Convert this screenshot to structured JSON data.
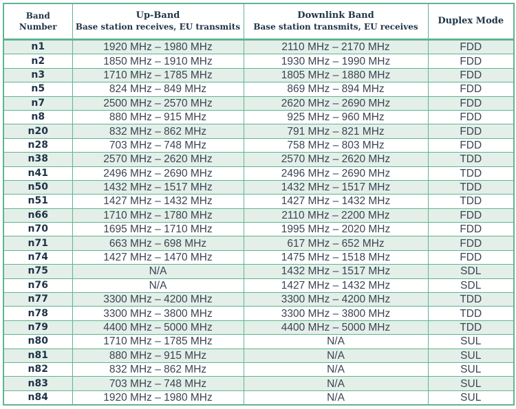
{
  "table": {
    "headers": {
      "band": {
        "line1": "Band",
        "line2": "Number"
      },
      "uplink": {
        "title": "Up-Band",
        "subtitle": "Base station receives, EU transmits"
      },
      "downlink": {
        "title": "Downlink Band",
        "subtitle": "Base station transmits, EU receives"
      },
      "duplex": {
        "title": "Duplex Mode"
      }
    },
    "colors": {
      "border": "#5fb391",
      "shaded_row": "#e3efe8",
      "header_text": "#1f3347"
    },
    "rows": [
      {
        "band": "n1",
        "uplink": "1920 MHz – 1980 MHz",
        "downlink": "2110 MHz – 2170 MHz",
        "duplex": "FDD"
      },
      {
        "band": "n2",
        "uplink": "1850 MHz – 1910 MHz",
        "downlink": "1930 MHz – 1990 MHz",
        "duplex": "FDD"
      },
      {
        "band": "n3",
        "uplink": "1710 MHz – 1785 MHz",
        "downlink": "1805 MHz – 1880 MHz",
        "duplex": "FDD"
      },
      {
        "band": "n5",
        "uplink": "824 MHz – 849 MHz",
        "downlink": "869 MHz – 894 MHz",
        "duplex": "FDD"
      },
      {
        "band": "n7",
        "uplink": "2500 MHz – 2570 MHz",
        "downlink": "2620 MHz – 2690 MHz",
        "duplex": "FDD"
      },
      {
        "band": "n8",
        "uplink": "880 MHz – 915 MHz",
        "downlink": "925 MHz – 960 MHz",
        "duplex": "FDD"
      },
      {
        "band": "n20",
        "uplink": "832 MHz – 862 MHz",
        "downlink": "791 MHz – 821 MHz",
        "duplex": "FDD"
      },
      {
        "band": "n28",
        "uplink": "703 MHz – 748 MHz",
        "downlink": "758 MHz – 803 MHz",
        "duplex": "FDD"
      },
      {
        "band": "n38",
        "uplink": "2570 MHz – 2620 MHz",
        "downlink": "2570 MHz – 2620 MHz",
        "duplex": "TDD"
      },
      {
        "band": "n41",
        "uplink": "2496 MHz – 2690 MHz",
        "downlink": "2496 MHz – 2690 MHz",
        "duplex": "TDD"
      },
      {
        "band": "n50",
        "uplink": "1432 MHz – 1517 MHz",
        "downlink": "1432 MHz – 1517 MHz",
        "duplex": "TDD"
      },
      {
        "band": "n51",
        "uplink": "1427 MHz – 1432 MHz",
        "downlink": "1427 MHz – 1432 MHz",
        "duplex": "TDD"
      },
      {
        "band": "n66",
        "uplink": "1710 MHz – 1780 MHz",
        "downlink": "2110 MHz – 2200 MHz",
        "duplex": "FDD"
      },
      {
        "band": "n70",
        "uplink": "1695 MHz – 1710 MHz",
        "downlink": "1995 MHz – 2020 MHz",
        "duplex": "FDD"
      },
      {
        "band": "n71",
        "uplink": "663 MHz – 698 MHz",
        "downlink": "617 MHz – 652 MHz",
        "duplex": "FDD"
      },
      {
        "band": "n74",
        "uplink": "1427 MHz – 1470 MHz",
        "downlink": "1475 MHz – 1518 MHz",
        "duplex": "FDD"
      },
      {
        "band": "n75",
        "uplink": "N/A",
        "downlink": "1432 MHz – 1517 MHz",
        "duplex": "SDL"
      },
      {
        "band": "n76",
        "uplink": "N/A",
        "downlink": "1427 MHz – 1432 MHz",
        "duplex": "SDL"
      },
      {
        "band": "n77",
        "uplink": "3300 MHz – 4200 MHz",
        "downlink": "3300 MHz – 4200 MHz",
        "duplex": "TDD"
      },
      {
        "band": "n78",
        "uplink": "3300 MHz – 3800 MHz",
        "downlink": "3300 MHz – 3800 MHz",
        "duplex": "TDD"
      },
      {
        "band": "n79",
        "uplink": "4400 MHz – 5000 MHz",
        "downlink": "4400 MHz – 5000 MHz",
        "duplex": "TDD"
      },
      {
        "band": "n80",
        "uplink": "1710 MHz – 1785 MHz",
        "downlink": "N/A",
        "duplex": "SUL"
      },
      {
        "band": "n81",
        "uplink": "880 MHz – 915 MHz",
        "downlink": "N/A",
        "duplex": "SUL"
      },
      {
        "band": "n82",
        "uplink": "832 MHz – 862 MHz",
        "downlink": "N/A",
        "duplex": "SUL"
      },
      {
        "band": "n83",
        "uplink": "703 MHz – 748 MHz",
        "downlink": "N/A",
        "duplex": "SUL"
      },
      {
        "band": "n84",
        "uplink": "1920 MHz – 1980 MHz",
        "downlink": "N/A",
        "duplex": "SUL"
      }
    ]
  }
}
